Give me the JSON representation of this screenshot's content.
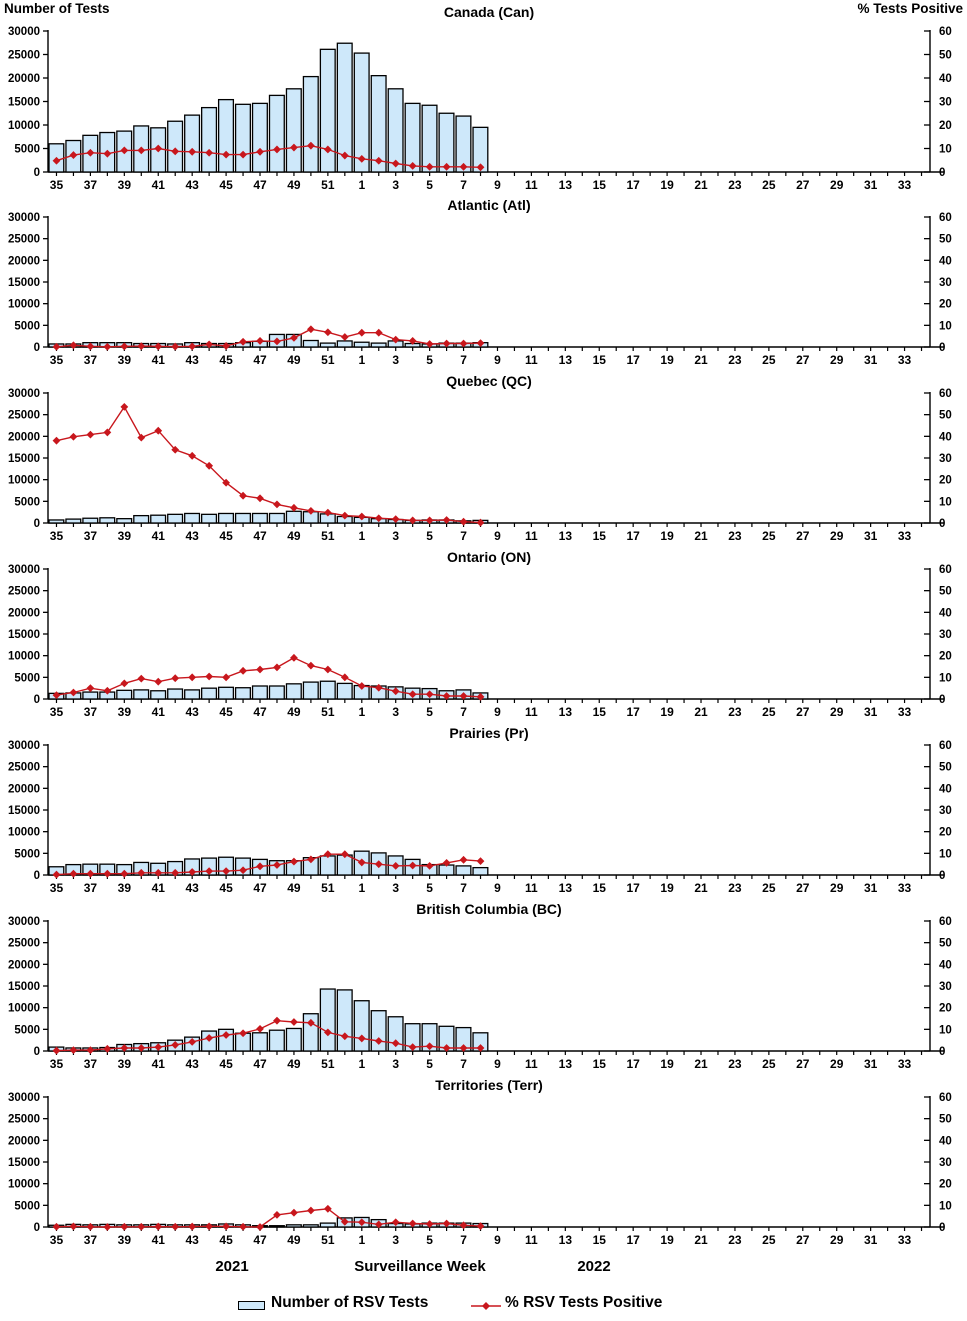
{
  "header": {
    "left_axis_title": "Number of Tests",
    "right_axis_title": "% Tests Positive"
  },
  "footer": {
    "year_left": "2021",
    "axis_title": "Surveillance Week",
    "year_right": "2022"
  },
  "legend": {
    "bar_label": "Number of RSV Tests",
    "line_label": "% RSV Tests Positive"
  },
  "colors": {
    "bar_fill": "#CEE8FA",
    "bar_border": "#000000",
    "line": "#C8171D",
    "axis": "#000000",
    "text": "#000000"
  },
  "chart_data": {
    "type": "bar",
    "note": "multi-panel bar+line combo; bars = number of RSV tests (left axis), line = % RSV tests positive (right axis)",
    "xlabel": "Surveillance Week",
    "left_axis": {
      "title": "Number of Tests",
      "ticks": [
        0,
        5000,
        10000,
        15000,
        20000,
        25000,
        30000
      ],
      "max": 30000
    },
    "right_axis": {
      "title": "% Tests Positive",
      "ticks": [
        0,
        10,
        20,
        30,
        40,
        50,
        60
      ],
      "max": 60
    },
    "weeks_axis": [
      35,
      36,
      37,
      38,
      39,
      40,
      41,
      42,
      43,
      44,
      45,
      46,
      47,
      48,
      49,
      50,
      51,
      52,
      1,
      2,
      3,
      4,
      5,
      6,
      7,
      8,
      9,
      10,
      11,
      12,
      13,
      14,
      15,
      16,
      17,
      18,
      19,
      20,
      21,
      22,
      23,
      24,
      25,
      26,
      27,
      28,
      29,
      30,
      31,
      32,
      33,
      34
    ],
    "weeks_with_data": [
      35,
      36,
      37,
      38,
      39,
      40,
      41,
      42,
      43,
      44,
      45,
      46,
      47,
      48,
      49,
      50,
      51,
      52,
      1,
      2,
      3,
      4,
      5,
      6,
      7,
      8
    ],
    "panels": [
      {
        "id": "canada",
        "title": "Canada (Can)",
        "tests": [
          6000,
          6700,
          7800,
          8400,
          8700,
          9800,
          9400,
          10800,
          12100,
          13700,
          15400,
          14400,
          14600,
          16300,
          17700,
          20300,
          26100,
          27400,
          25300,
          20500,
          17700,
          14600,
          14200,
          12500,
          11900,
          9500
        ],
        "pct_positive": [
          4.8,
          7.2,
          8.2,
          7.8,
          9.2,
          9.2,
          10.0,
          8.8,
          8.6,
          8.2,
          7.4,
          7.4,
          8.6,
          9.6,
          10.4,
          11.2,
          9.6,
          7.0,
          5.6,
          4.8,
          3.6,
          2.6,
          2.2,
          2.2,
          2.2,
          2.0
        ]
      },
      {
        "id": "atlantic",
        "title": "Atlantic (Atl)",
        "tests": [
          700,
          700,
          1000,
          1000,
          1000,
          800,
          800,
          700,
          1000,
          800,
          800,
          1000,
          1300,
          2900,
          2900,
          1500,
          900,
          1400,
          1100,
          900,
          1400,
          800,
          700,
          900,
          900,
          1000
        ],
        "pct_positive": [
          0.1,
          0.8,
          0.3,
          0.1,
          0.3,
          0.4,
          0.3,
          0.2,
          0.3,
          1.2,
          0.5,
          2.4,
          2.8,
          2.6,
          4.2,
          8.2,
          6.8,
          4.6,
          6.6,
          6.6,
          3.4,
          2.8,
          1.4,
          1.6,
          1.6,
          1.8
        ]
      },
      {
        "id": "quebec",
        "title": "Quebec (QC)",
        "tests": [
          700,
          900,
          1100,
          1200,
          1000,
          1700,
          1800,
          2000,
          2200,
          2000,
          2200,
          2200,
          2200,
          2200,
          2700,
          2600,
          2100,
          1500,
          1300,
          1000,
          800,
          600,
          700,
          700,
          500,
          600
        ],
        "pct_positive": [
          38.0,
          39.8,
          40.8,
          41.8,
          53.6,
          39.4,
          42.6,
          33.8,
          31.0,
          26.4,
          18.6,
          12.6,
          11.4,
          8.6,
          7.0,
          5.6,
          4.8,
          3.4,
          3.0,
          2.2,
          1.8,
          1.2,
          1.2,
          1.4,
          0.6,
          0.2
        ]
      },
      {
        "id": "ontario",
        "title": "Ontario (ON)",
        "tests": [
          1300,
          1400,
          1600,
          1600,
          2000,
          2100,
          1900,
          2300,
          2100,
          2500,
          2700,
          2600,
          3000,
          3000,
          3500,
          3900,
          4100,
          3600,
          3100,
          3000,
          2800,
          2500,
          2400,
          1900,
          2100,
          1400
        ],
        "pct_positive": [
          1.8,
          3.0,
          5.0,
          3.8,
          7.2,
          9.4,
          8.0,
          9.6,
          10.0,
          10.4,
          10.0,
          13.0,
          13.6,
          14.6,
          19.0,
          15.4,
          13.6,
          10.0,
          6.0,
          5.2,
          3.6,
          2.2,
          2.2,
          1.4,
          1.4,
          1.0
        ]
      },
      {
        "id": "prairies",
        "title": "Prairies (Pr)",
        "tests": [
          1900,
          2400,
          2500,
          2500,
          2400,
          2900,
          2700,
          3100,
          3700,
          3900,
          4100,
          3900,
          3600,
          3300,
          3300,
          4000,
          4400,
          4600,
          5500,
          5100,
          4400,
          3600,
          2400,
          2300,
          2100,
          1700
        ],
        "pct_positive": [
          0.2,
          0.6,
          0.6,
          0.6,
          0.6,
          1.0,
          1.0,
          1.0,
          1.4,
          1.8,
          1.8,
          2.2,
          4.0,
          4.6,
          6.2,
          7.2,
          9.6,
          9.6,
          5.8,
          5.0,
          4.2,
          4.4,
          4.2,
          5.6,
          7.0,
          6.4
        ]
      },
      {
        "id": "british-columbia",
        "title": "British Columbia (BC)",
        "tests": [
          900,
          700,
          700,
          800,
          1500,
          1700,
          1900,
          2500,
          3200,
          4600,
          5000,
          4100,
          4200,
          4800,
          5200,
          8600,
          14300,
          14100,
          11600,
          9300,
          7900,
          6300,
          6300,
          5700,
          5400,
          4200
        ],
        "pct_positive": [
          0.2,
          0.4,
          0.4,
          1.0,
          1.4,
          1.4,
          1.8,
          2.8,
          4.2,
          6.0,
          7.4,
          8.2,
          10.2,
          14.0,
          13.4,
          13.0,
          8.6,
          6.8,
          5.8,
          4.6,
          3.6,
          1.8,
          2.2,
          1.4,
          1.4,
          1.4
        ]
      },
      {
        "id": "territories",
        "title": "Territories (Terr)",
        "tests": [
          400,
          600,
          500,
          600,
          500,
          500,
          600,
          500,
          500,
          500,
          700,
          500,
          300,
          300,
          500,
          500,
          900,
          2100,
          2200,
          1700,
          800,
          700,
          900,
          900,
          900,
          800
        ],
        "pct_positive": [
          0.1,
          0.3,
          0.1,
          0.0,
          0.1,
          0.1,
          0.2,
          0.1,
          0.2,
          0.3,
          0.3,
          0.1,
          0.0,
          5.6,
          6.6,
          7.6,
          8.4,
          2.4,
          2.2,
          1.2,
          2.2,
          1.6,
          1.4,
          1.6,
          0.8,
          0.4
        ]
      }
    ]
  }
}
